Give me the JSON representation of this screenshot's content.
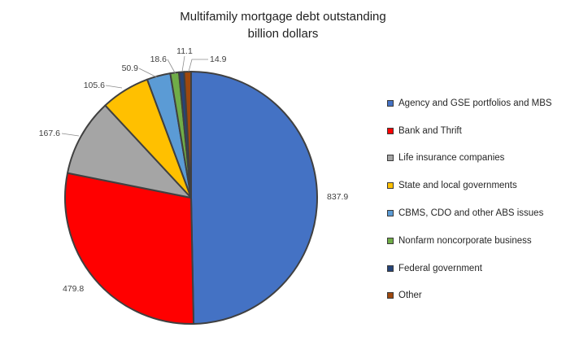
{
  "chart_data": {
    "type": "pie",
    "title": [
      "Multifamily mortgage debt outstanding",
      "billion dollars"
    ],
    "legend_position": "right",
    "slices": [
      {
        "label": "Agency and GSE portfolios and MBS",
        "value": 837.9,
        "value_label": "837.9",
        "color": "#4472c4"
      },
      {
        "label": "Bank and Thrift",
        "value": 479.8,
        "value_label": "479.8",
        "color": "#ff0000"
      },
      {
        "label": "Life insurance companies",
        "value": 167.6,
        "value_label": "167.6",
        "color": "#a5a5a5"
      },
      {
        "label": "State and local governments",
        "value": 105.6,
        "value_label": "105.6",
        "color": "#ffc000"
      },
      {
        "label": "CBMS, CDO and other ABS issues",
        "value": 50.9,
        "value_label": "50.9",
        "color": "#5b9bd5"
      },
      {
        "label": "Nonfarm noncorporate business",
        "value": 18.6,
        "value_label": "18.6",
        "color": "#70ad47"
      },
      {
        "label": "Federal government",
        "value": 11.1,
        "value_label": "11.1",
        "color": "#264478"
      },
      {
        "label": "Other",
        "value": 14.9,
        "value_label": "14.9",
        "color": "#9e480e"
      }
    ]
  }
}
